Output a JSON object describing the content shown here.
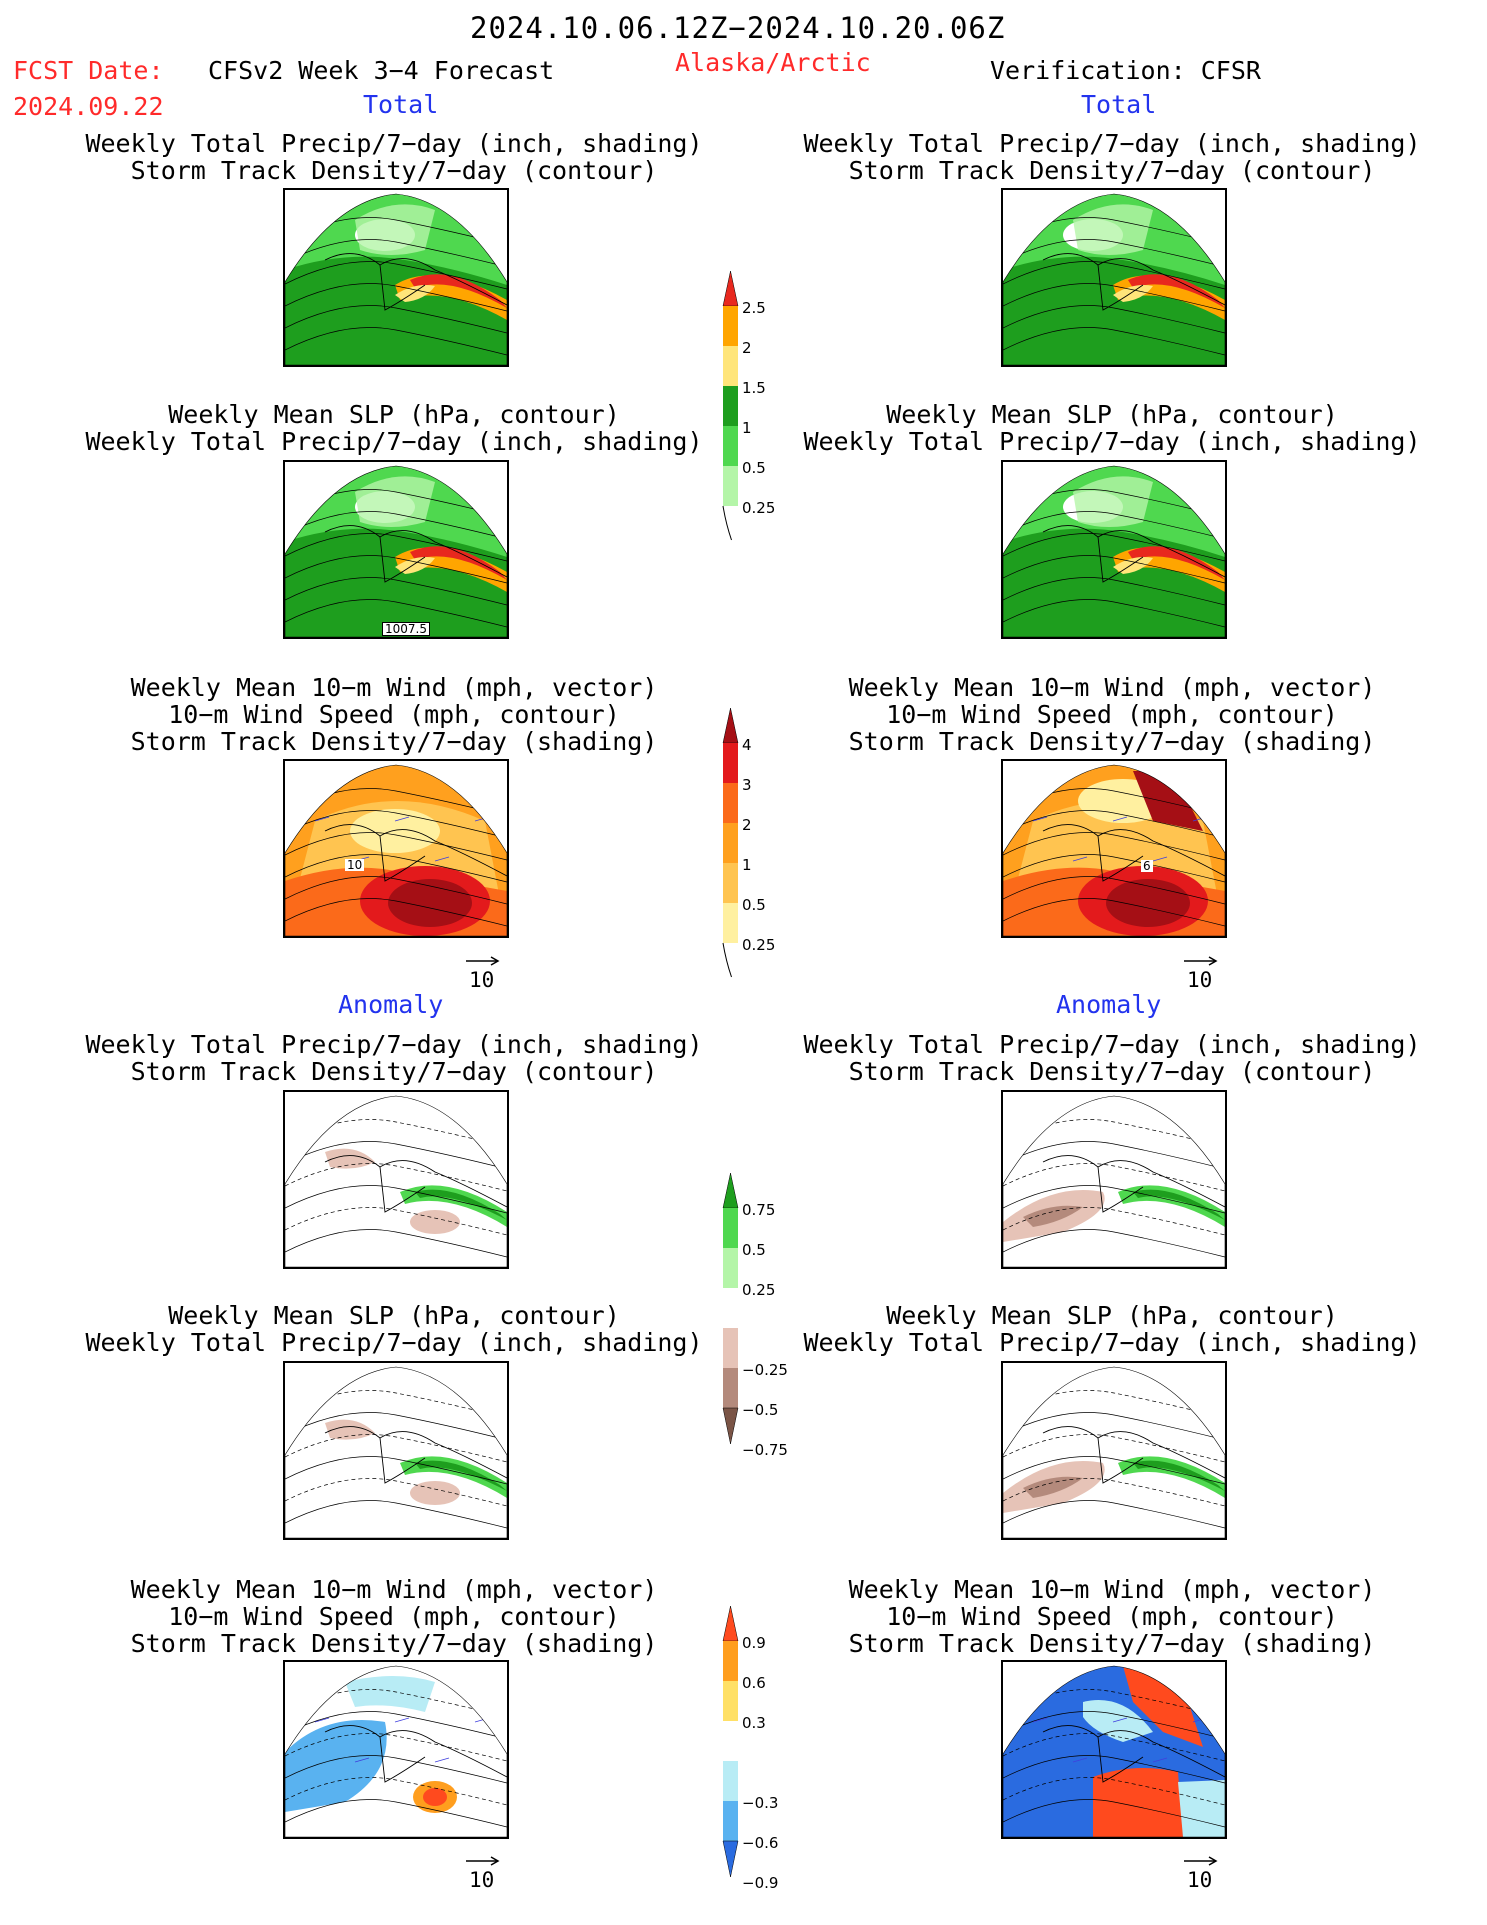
{
  "header": {
    "period": "2024.10.06.12Z−2024.10.20.06Z",
    "fcst_label": "FCST Date:",
    "fcst_date": "2024.09.22",
    "product": "CFSv2 Week 3−4 Forecast",
    "region": "Alaska/Arctic",
    "verification": "Verification: CFSR"
  },
  "sections": {
    "total": "Total",
    "anomaly": "Anomaly"
  },
  "captions": {
    "precip_storm": [
      "Weekly Total Precip/7−day (inch, shading)",
      "Storm Track Density/7−day (contour)"
    ],
    "slp_precip": [
      "Weekly Mean SLP (hPa, contour)",
      "Weekly Total Precip/7−day (inch, shading)"
    ],
    "wind_storm": [
      "Weekly Mean 10−m Wind (mph, vector)",
      "10−m Wind Speed (mph, contour)",
      "Storm Track Density/7−day (shading)"
    ]
  },
  "panel_labels": {
    "slp_total_fcst": "1007.5",
    "wind_total_fcst": "10",
    "wind_total_obs": "6"
  },
  "vector_reference": "10",
  "colorbars": {
    "precip_total": {
      "labels": [
        "2.5",
        "2",
        "1.5",
        "1",
        "0.5",
        "0.25"
      ],
      "colors": [
        "#e8281e",
        "#ffa500",
        "#ffe57a",
        "#1e9e1e",
        "#4fd84f",
        "#b4f5a8"
      ]
    },
    "storm_total": {
      "labels": [
        "4",
        "3",
        "2",
        "1",
        "0.5",
        "0.25"
      ],
      "colors": [
        "#a50f15",
        "#e31a1c",
        "#fb6a1a",
        "#ffa01e",
        "#ffc450",
        "#fff0a0"
      ]
    },
    "precip_anom": {
      "labels": [
        "0.75",
        "0.5",
        "0.25",
        "−0.25",
        "−0.5",
        "−0.75"
      ],
      "colors": [
        "#1e9e1e",
        "#4fd84f",
        "#b4f5a8",
        "#ffffff",
        "#e6c3b7",
        "#b48a7c",
        "#7a5446"
      ]
    },
    "storm_anom": {
      "labels": [
        "0.9",
        "0.6",
        "0.3",
        "−0.3",
        "−0.6",
        "−0.9"
      ],
      "colors": [
        "#ff4a1e",
        "#ff9e1e",
        "#ffe066",
        "#ffffff",
        "#b8ecf5",
        "#59b2f0",
        "#2a6be0"
      ]
    }
  }
}
